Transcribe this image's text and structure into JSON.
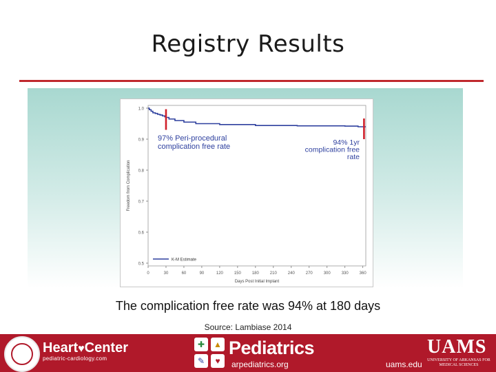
{
  "slide": {
    "title": "Registry Results",
    "caption": "The complication free rate was 94% at 180 days",
    "source": "Source: Lambiase 2014"
  },
  "footer": {
    "heart_center": "Heart",
    "heart_center_2": "Center",
    "heart_url": "pediatric-cardiology.com",
    "pediatrics": "Pediatrics",
    "pediatrics_url": "arpediatrics.org",
    "uams_url": "uams.edu",
    "uams": "UAMS",
    "uams_sub": "UNIVERSITY OF ARKANSAS FOR MEDICAL SCIENCES"
  },
  "colors": {
    "accent": "#c0282d",
    "line": "#2d3f9e",
    "footer": "#b0192a",
    "marker": "#d0202a"
  },
  "chart_data": {
    "type": "line",
    "xlabel": "Days Post Initial Implant",
    "ylabel": "Freedom from Complication",
    "xlim": [
      0,
      365
    ],
    "ylim": [
      0.5,
      1.0
    ],
    "xticks": [
      0,
      30,
      60,
      90,
      120,
      150,
      180,
      210,
      240,
      270,
      300,
      330,
      360
    ],
    "yticks": [
      0.5,
      0.6,
      0.7,
      0.8,
      0.9,
      1.0
    ],
    "ytick_labels": [
      "0.5",
      "0.6",
      "0.7",
      "0.8",
      "0.9",
      "1.0"
    ],
    "legend": {
      "label": "K-M Estimate",
      "placement": "bottom-left"
    },
    "grid": false,
    "series": [
      {
        "name": "K-M Estimate",
        "step": true,
        "x": [
          0,
          2,
          5,
          8,
          12,
          16,
          20,
          24,
          28,
          30,
          35,
          45,
          60,
          80,
          120,
          180,
          250,
          330,
          352,
          365
        ],
        "y": [
          1.0,
          0.995,
          0.99,
          0.985,
          0.983,
          0.98,
          0.978,
          0.975,
          0.972,
          0.97,
          0.965,
          0.96,
          0.955,
          0.95,
          0.947,
          0.944,
          0.943,
          0.942,
          0.94,
          0.94
        ]
      }
    ],
    "annotations": [
      {
        "text": [
          "97% Peri-procedural",
          "complication free rate"
        ],
        "marker_x": 30,
        "marker_y": 0.97
      },
      {
        "text": [
          "94% 1yr",
          "complication free",
          "rate"
        ],
        "marker_x": 362,
        "marker_y": 0.94
      }
    ]
  }
}
